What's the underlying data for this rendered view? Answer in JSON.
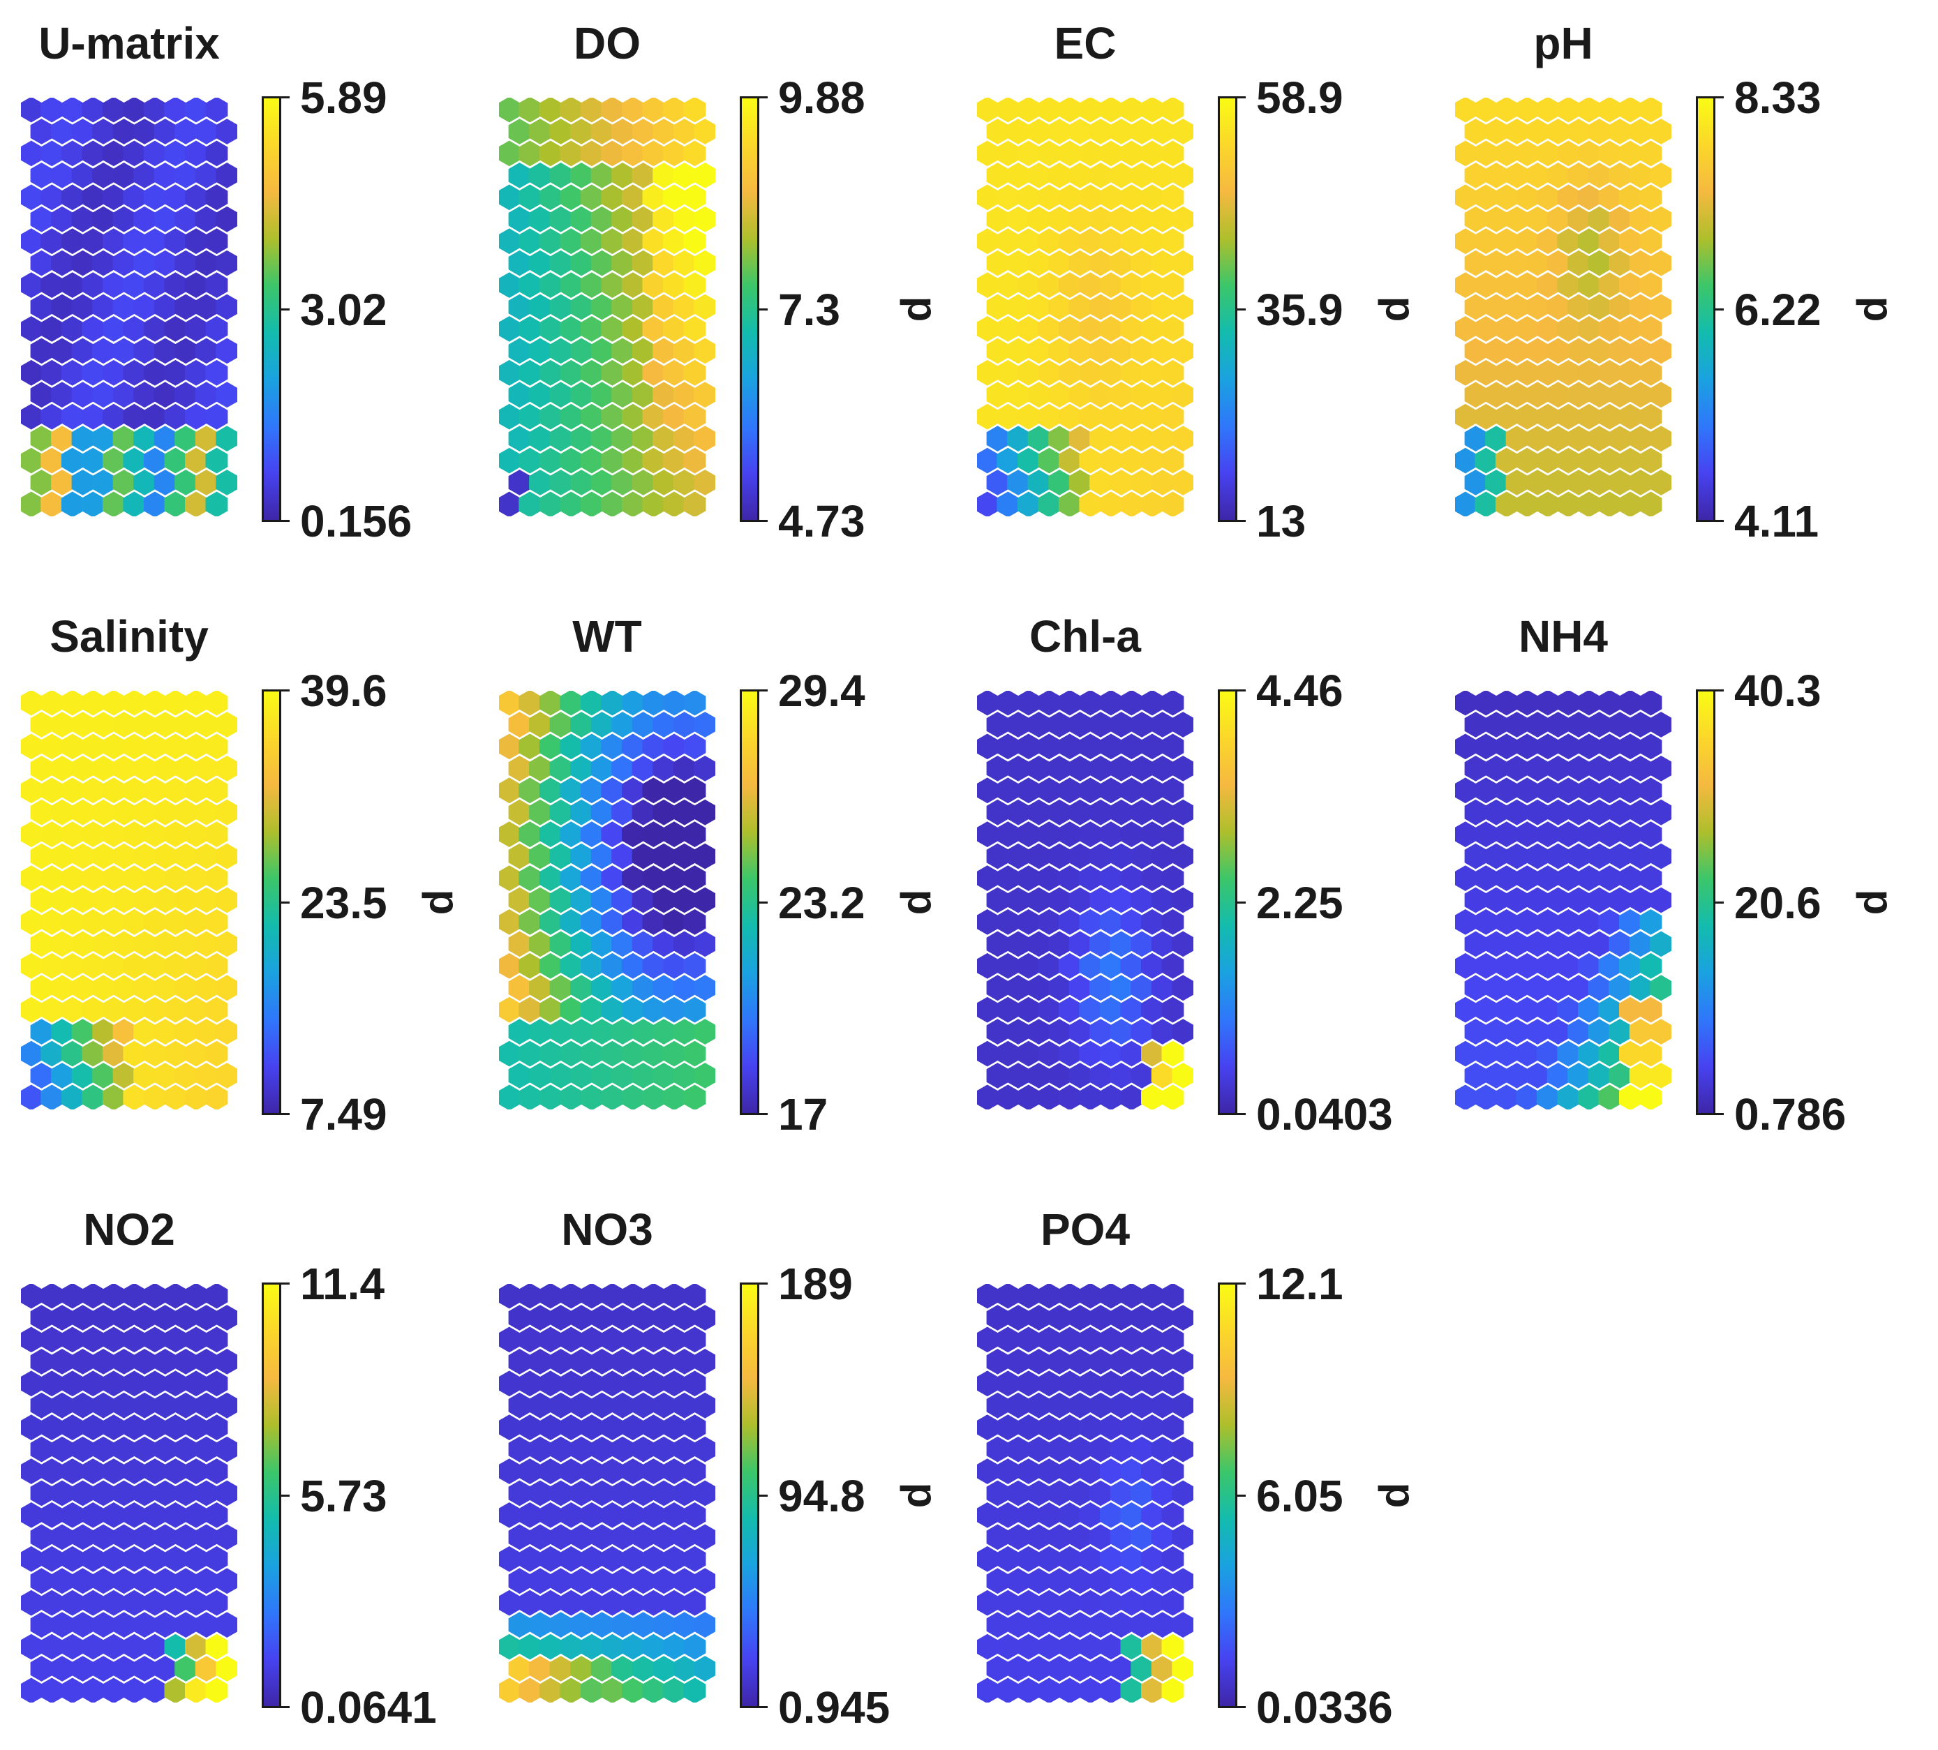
{
  "chart_data": [
    {
      "type": "heatmap",
      "title": "U-matrix",
      "colorbar_ticks": [
        "5.89",
        "3.02",
        "0.156"
      ],
      "clim": [
        0.156,
        5.89
      ],
      "unit_label": "",
      "pattern": "umatrix"
    },
    {
      "type": "heatmap",
      "title": "DO",
      "colorbar_ticks": [
        "9.88",
        "7.3",
        "4.73"
      ],
      "clim": [
        4.73,
        9.88
      ],
      "unit_label": "d",
      "pattern": "do"
    },
    {
      "type": "heatmap",
      "title": "EC",
      "colorbar_ticks": [
        "58.9",
        "35.9",
        "13"
      ],
      "clim": [
        13,
        58.9
      ],
      "unit_label": "d",
      "pattern": "ec"
    },
    {
      "type": "heatmap",
      "title": "pH",
      "colorbar_ticks": [
        "8.33",
        "6.22",
        "4.11"
      ],
      "clim": [
        4.11,
        8.33
      ],
      "unit_label": "d",
      "pattern": "ph"
    },
    {
      "type": "heatmap",
      "title": "Salinity",
      "colorbar_ticks": [
        "39.6",
        "23.5",
        "7.49"
      ],
      "clim": [
        7.49,
        39.6
      ],
      "unit_label": "d",
      "pattern": "salinity"
    },
    {
      "type": "heatmap",
      "title": "WT",
      "colorbar_ticks": [
        "29.4",
        "23.2",
        "17"
      ],
      "clim": [
        17,
        29.4
      ],
      "unit_label": "d",
      "pattern": "wt"
    },
    {
      "type": "heatmap",
      "title": "Chl-a",
      "colorbar_ticks": [
        "4.46",
        "2.25",
        "0.0403"
      ],
      "clim": [
        0.0403,
        4.46
      ],
      "unit_label": "",
      "pattern": "chla"
    },
    {
      "type": "heatmap",
      "title": "NH4",
      "colorbar_ticks": [
        "40.3",
        "20.6",
        "0.786"
      ],
      "clim": [
        0.786,
        40.3
      ],
      "unit_label": "d",
      "pattern": "nh4"
    },
    {
      "type": "heatmap",
      "title": "NO2",
      "colorbar_ticks": [
        "11.4",
        "5.73",
        "0.0641"
      ],
      "clim": [
        0.0641,
        11.4
      ],
      "unit_label": "",
      "pattern": "no2"
    },
    {
      "type": "heatmap",
      "title": "NO3",
      "colorbar_ticks": [
        "189",
        "94.8",
        "0.945"
      ],
      "clim": [
        0.945,
        189
      ],
      "unit_label": "d",
      "pattern": "no3"
    },
    {
      "type": "heatmap",
      "title": "PO4",
      "colorbar_ticks": [
        "12.1",
        "6.05",
        "0.0336"
      ],
      "clim": [
        0.0336,
        12.1
      ],
      "unit_label": "d",
      "pattern": "po4"
    }
  ],
  "colormap": [
    "#3e26a8",
    "#4743f1",
    "#2f77fb",
    "#1aa2e0",
    "#13bcad",
    "#3cc66a",
    "#aebf2c",
    "#f5b940",
    "#fbd72a",
    "#f9fb15"
  ]
}
